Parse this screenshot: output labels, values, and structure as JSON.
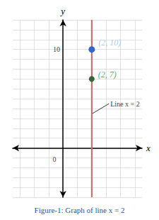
{
  "chart_data": {
    "type": "line",
    "title": "Figure-1: Graph of line x = 2",
    "title_color": "#2255bb",
    "x_label": "x",
    "y_label": "y",
    "xlim": [
      -3.5,
      5.5
    ],
    "ylim": [
      -5,
      13
    ],
    "xticks": [
      -3,
      -2,
      -1,
      0,
      1,
      2,
      3,
      4,
      5
    ],
    "yticks": [
      -5,
      -4,
      -3,
      -2,
      -1,
      0,
      1,
      2,
      3,
      4,
      5,
      6,
      7,
      8,
      9,
      10,
      11,
      12,
      13
    ],
    "grid": true,
    "grid_color": "#cccccc",
    "tick_labels": false,
    "vertical_line": {
      "x": 2,
      "color": "#cc6666"
    },
    "points": [
      {
        "x": 2,
        "y": 10,
        "color": "#3366cc",
        "label": "(2, 10)",
        "label_color": "#aaccee"
      },
      {
        "x": 2,
        "y": 7,
        "color": "#336633",
        "label": "(2, 7)",
        "label_color": "#66aa66"
      }
    ],
    "annotations": [
      {
        "text": "Line x = 2",
        "x": 3.2,
        "y": 4.5,
        "arrow_to": [
          2.05,
          3.5
        ]
      },
      {
        "text": "10",
        "x": -0.2,
        "y": 10
      },
      {
        "text": "0",
        "x": -0.6,
        "y": -0.8
      }
    ]
  }
}
